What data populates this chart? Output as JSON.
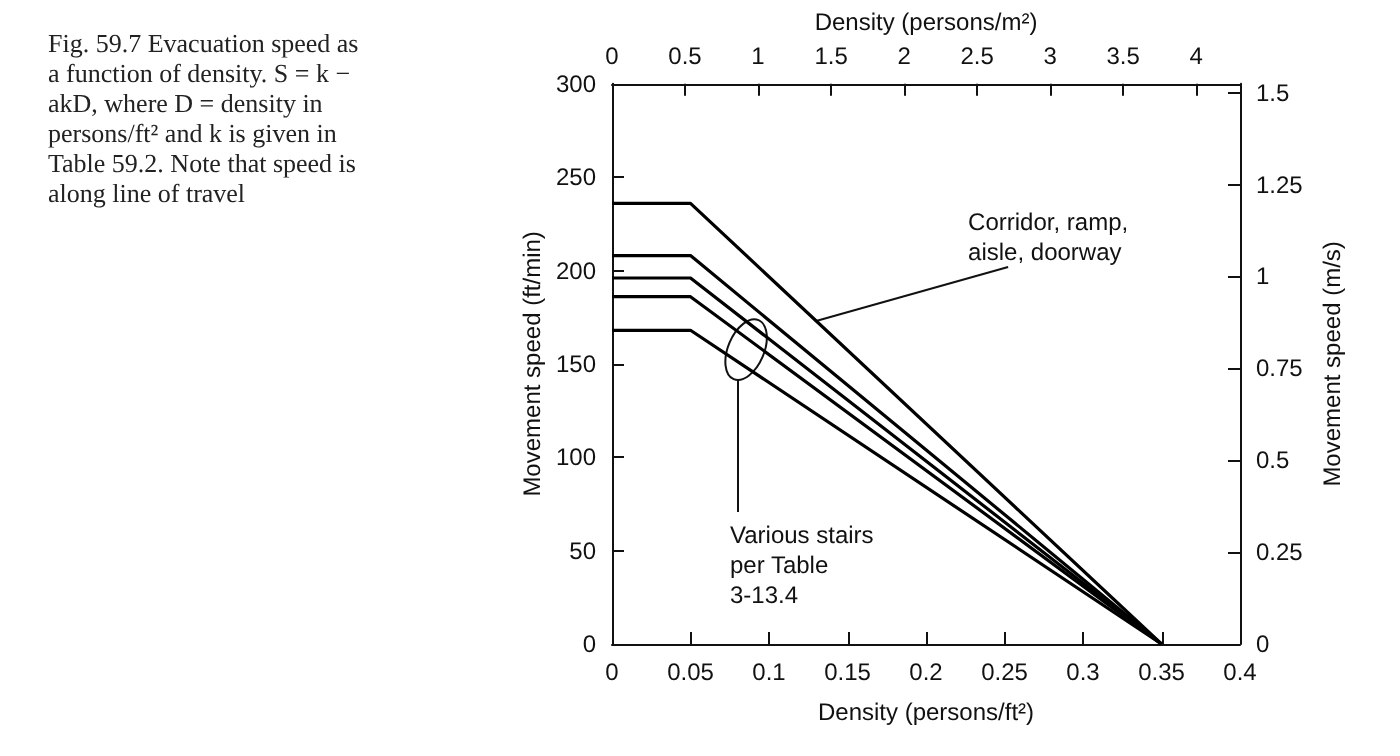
{
  "chart_data": {
    "type": "line",
    "title": "Fig. 59.7 Evacuation speed as a function of density. S = k − akD, where D = density in persons/ft² and k is given in Table 59.2. Note that speed is along line of travel",
    "xlabel": "Density (persons/ft²)",
    "x2label": "Density (persons/m²)",
    "ylabel": "Movement speed (ft/min)",
    "y2label": "Movement speed (m/s)",
    "xlim": [
      0,
      0.4
    ],
    "xticks": [
      0,
      0.05,
      0.1,
      0.15,
      0.2,
      0.25,
      0.3,
      0.35,
      0.4
    ],
    "x2lim": [
      0,
      4.3
    ],
    "x2ticks": [
      0,
      0.5,
      1,
      1.5,
      2,
      2.5,
      3,
      3.5,
      4
    ],
    "ylim": [
      0,
      300
    ],
    "yticks": [
      0,
      50,
      100,
      150,
      200,
      250,
      300
    ],
    "y2lim": [
      0,
      1.524
    ],
    "y2ticks": [
      0,
      0.25,
      0.5,
      0.75,
      1,
      1.25,
      1.5
    ],
    "series": [
      {
        "color": "#000000",
        "x": [
          0,
          0.05,
          0.35
        ],
        "values": [
          236,
          236,
          0
        ]
      },
      {
        "color": "#000000",
        "x": [
          0,
          0.05,
          0.35
        ],
        "values": [
          208,
          208,
          0
        ]
      },
      {
        "color": "#000000",
        "x": [
          0,
          0.05,
          0.35
        ],
        "values": [
          196,
          196,
          0
        ]
      },
      {
        "color": "#000000",
        "x": [
          0,
          0.05,
          0.35
        ],
        "values": [
          186,
          186,
          0
        ]
      },
      {
        "color": "#000000",
        "x": [
          0,
          0.05,
          0.35
        ],
        "values": [
          168,
          168,
          0
        ]
      }
    ],
    "annotations": [
      {
        "text": "Corridor, ramp, aisle, doorway",
        "x": 0.13,
        "y": 173
      },
      "Various stairs per Table 3-13.4"
    ],
    "marker": "none",
    "line_style": "solid"
  }
}
